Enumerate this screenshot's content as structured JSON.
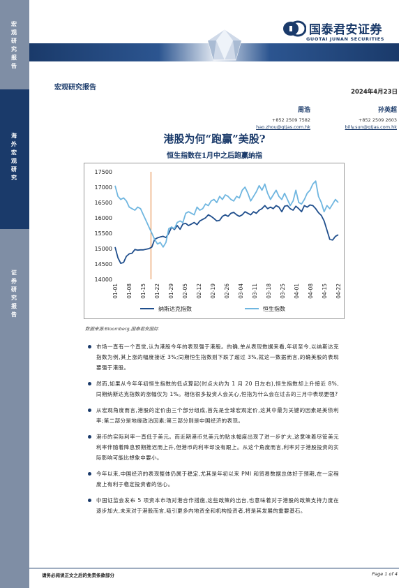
{
  "sidebar": {
    "seg1": "宏观研究报告",
    "seg2": "海外宏观研究",
    "seg3": "证券研究报告"
  },
  "header": {
    "logo_cn": "国泰君安证券",
    "logo_en": "GUOTAI JUNAN SECURITIES",
    "section_label": "宏观研究报告",
    "date": "2024年4月23日"
  },
  "authors": [
    {
      "name": "周浩",
      "phone": "+852 2509 7582",
      "email": "hao.zhou@gtjas.com.hk"
    },
    {
      "name": "孙英超",
      "phone": "+852 2509 2603",
      "email": "billy.sun@gtjas.com.hk"
    }
  ],
  "title": "港股为何“跑赢”美股?",
  "subtitle": "恒生指数在1月中之后跑赢纳指",
  "chart_data": {
    "type": "line",
    "x_ticks": [
      "01-01",
      "01-08",
      "01-15",
      "01-22",
      "01-29",
      "02-05",
      "02-12",
      "02-19",
      "02-26",
      "03-04",
      "03-11",
      "03-18",
      "03-25",
      "04-01",
      "04-08",
      "04-15",
      "04-22"
    ],
    "y_ticks": [
      14000,
      14500,
      15000,
      15500,
      16000,
      16500,
      17000,
      17500
    ],
    "ylim": [
      14000,
      17500
    ],
    "marker_x": "01-19",
    "series": [
      {
        "name": "纳斯达克指数",
        "color": "#1f4e8c",
        "values": [
          15050,
          14700,
          14520,
          14550,
          14750,
          14830,
          14850,
          14970,
          14950,
          14960,
          14960,
          14980,
          15000,
          15050,
          15300,
          15350,
          15380,
          15400,
          15360,
          15500,
          15700,
          15620,
          15750,
          15630,
          15800,
          15820,
          15750,
          15800,
          15850,
          15780,
          15900,
          15950,
          16000,
          16100,
          16050,
          15980,
          15900,
          15920,
          16050,
          16100,
          16050,
          16150,
          16180,
          16100,
          16050,
          16100,
          16200,
          16150,
          16100,
          16200,
          16150,
          16250,
          16300,
          16400,
          16300,
          16350,
          16300,
          16400,
          16350,
          16200,
          16380,
          16400,
          16300,
          16250,
          16380,
          16300,
          16200,
          16400,
          16350,
          16420,
          16400,
          16300,
          16170,
          16080,
          15900,
          15600,
          15300,
          15280,
          15400,
          15450
        ]
      },
      {
        "name": "恒生指数",
        "color": "#6fb6e0",
        "values": [
          17050,
          16700,
          16600,
          16650,
          16550,
          16350,
          16300,
          16250,
          16350,
          16300,
          16100,
          15900,
          15700,
          15500,
          15300,
          15150,
          15200,
          15050,
          15200,
          15650,
          15700,
          15650,
          15850,
          15900,
          15850,
          16150,
          16200,
          16150,
          16100,
          16350,
          16250,
          16300,
          16450,
          16400,
          16550,
          16600,
          16500,
          16700,
          16600,
          16750,
          16700,
          16600,
          16550,
          16700,
          16650,
          16900,
          17000,
          16800,
          16550,
          16700,
          16850,
          17050,
          16900,
          17100,
          16800,
          16600,
          16750,
          16900,
          16700,
          16600,
          16800,
          16600,
          16400,
          16550,
          16900,
          16500,
          16450,
          16600,
          16800,
          16900,
          17100,
          17200,
          16700,
          16500,
          16200,
          16400,
          16300,
          16450,
          16600,
          16500
        ]
      }
    ]
  },
  "source": "数据来源:Bloomberg,国泰君安国际",
  "bullets": [
    "市场一直有一个直觉,认为港股今年的表现强于港股。的确,单从表现数据来看,年初至今,以纳斯达克指数为例,其上涨的幅度接近 3%;同期恒生指数则下跌了超过 3%,就这一数据而言,的确美股的表现要强于港股。",
    "然而,如果从今年年初恒生指数的低点算起(时点大约为 1 月 20 日左右),恒生指数却上升接近 8%,同期纳斯达克指数的涨幅仅为 1%。相信很多投资人会关心,恒指为什么会在过去的三月中表现更强?",
    "从宏观角度而言,港股的定价由三个部分组成,首先是全球宏观定价,这其中最为关键的因素是美债利率;第二部分是地缘政治因素;第三部分则是中国经济的表现。",
    "港币的实际利率一直低于美元。而近期港币兑美元的贴水幅度出现了进一步扩大,这意味着尽管美元利率伴随着降息预期推迟而上升,但港币的利率却没有跟上。从这个角度而言,利率对于港股投资的实际影响可能比想象中要小。",
    "今年以来,中国经济的表现整体仍属于稳定,尤其是年初以来 PMI 和贸易数据总体好于预期,在一定程度上有利于稳定投资者的信心。",
    "中国证监会发布 5 项资本市场对港合作措施,这些政策的出台,也意味着对于港股的政策支持力度在逐步加大,未来对于港股而言,吸引更多内地资金和机构投资者,将是其发展的重要基石。"
  ],
  "footer": {
    "left": "请务必阅读正文之后的免责条款部分",
    "right": "Page 1 of 4"
  }
}
